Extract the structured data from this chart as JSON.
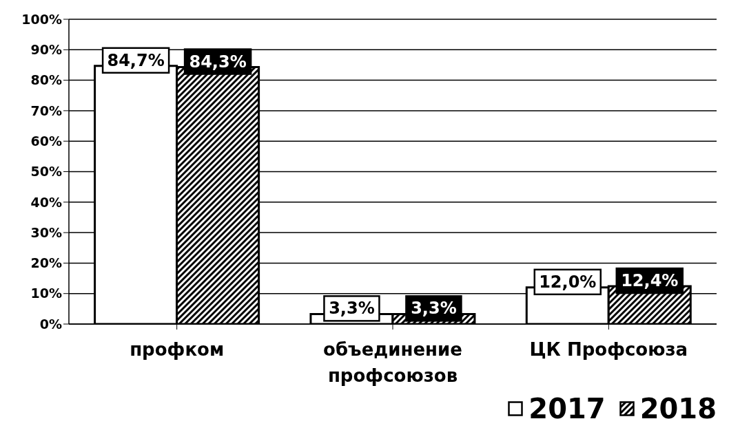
{
  "chart_data": {
    "type": "bar",
    "categories": [
      "профком",
      "объединение профсоюзов",
      "ЦК Профсоюза"
    ],
    "series": [
      {
        "name": "2017",
        "color": "#ffffff",
        "values": [
          84.7,
          3.3,
          12.0
        ],
        "value_labels": [
          "84,7%",
          "3,3%",
          "12,0%"
        ]
      },
      {
        "name": "2018",
        "color": "#000000",
        "values": [
          84.3,
          3.3,
          12.4
        ],
        "value_labels": [
          "84,3%",
          "3,3%",
          "12,4%"
        ]
      }
    ],
    "ylim": [
      0,
      100
    ],
    "yticks": [
      {
        "value": 0,
        "label": "0%"
      },
      {
        "value": 10,
        "label": "10%"
      },
      {
        "value": 20,
        "label": "20%"
      },
      {
        "value": 30,
        "label": "30%"
      },
      {
        "value": 40,
        "label": "40%"
      },
      {
        "value": 50,
        "label": "50%"
      },
      {
        "value": 60,
        "label": "60%"
      },
      {
        "value": 70,
        "label": "70%"
      },
      {
        "value": 80,
        "label": "80%"
      },
      {
        "value": 90,
        "label": "90%"
      },
      {
        "value": 100,
        "label": "100%"
      }
    ],
    "grid": "y",
    "legend": "bottom right"
  }
}
